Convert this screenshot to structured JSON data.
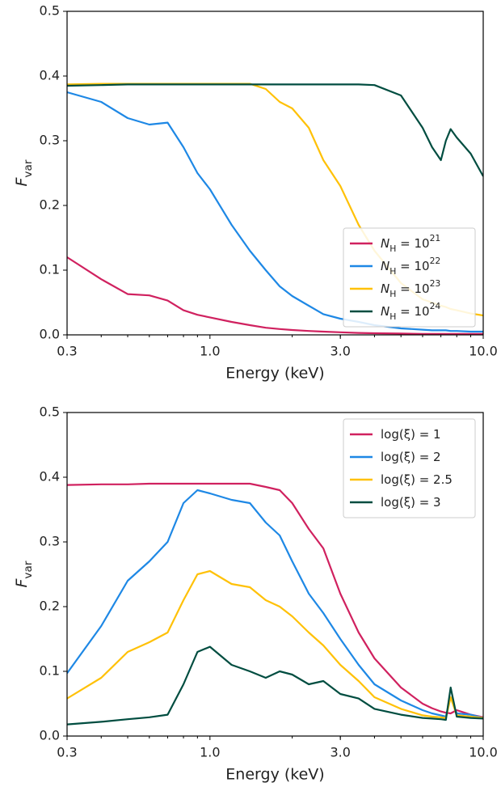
{
  "chart_data": [
    {
      "type": "line",
      "xlabel": "Energy (keV)",
      "ylabel": "F_var",
      "xscale": "log",
      "legend": "lower right",
      "xlim": [
        0.3,
        10
      ],
      "ylim": [
        0,
        0.5
      ],
      "xticks": [
        {
          "value": 0.3,
          "label": "0.3"
        },
        {
          "value": 1,
          "label": "1.0"
        },
        {
          "value": 3,
          "label": "3.0"
        },
        {
          "value": 10,
          "label": "10.0"
        }
      ],
      "yticks": [
        {
          "value": 0,
          "label": "0.0"
        },
        {
          "value": 0.1,
          "label": "0.1"
        },
        {
          "value": 0.2,
          "label": "0.2"
        },
        {
          "value": 0.3,
          "label": "0.3"
        },
        {
          "value": 0.4,
          "label": "0.4"
        },
        {
          "value": 0.5,
          "label": "0.5"
        }
      ],
      "x": [
        0.3,
        0.4,
        0.5,
        0.6,
        0.7,
        0.8,
        0.9,
        1.0,
        1.2,
        1.4,
        1.6,
        1.8,
        2.0,
        2.3,
        2.6,
        3.0,
        3.5,
        4.0,
        5.0,
        6.0,
        6.5,
        7.0,
        7.3,
        7.6,
        8.0,
        9.0,
        10
      ],
      "series": [
        {
          "name": "N_H = 10^21",
          "color": "#d0215f",
          "values": [
            0.12,
            0.086,
            0.063,
            0.061,
            0.053,
            0.038,
            0.031,
            0.027,
            0.02,
            0.015,
            0.011,
            0.009,
            0.0075,
            0.006,
            0.005,
            0.004,
            0.003,
            0.0025,
            0.002,
            0.0015,
            0.0015,
            0.0015,
            0.0015,
            0.0015,
            0.0015,
            0.0015,
            0.0015
          ]
        },
        {
          "name": "N_H = 10^22",
          "color": "#1e88e5",
          "values": [
            0.375,
            0.36,
            0.335,
            0.325,
            0.328,
            0.29,
            0.25,
            0.225,
            0.17,
            0.13,
            0.1,
            0.075,
            0.06,
            0.045,
            0.032,
            0.025,
            0.02,
            0.015,
            0.01,
            0.008,
            0.007,
            0.007,
            0.007,
            0.006,
            0.006,
            0.005,
            0.005
          ]
        },
        {
          "name": "N_H = 10^23",
          "color": "#ffc107",
          "values": [
            0.387,
            0.388,
            0.388,
            0.388,
            0.388,
            0.388,
            0.388,
            0.388,
            0.388,
            0.388,
            0.38,
            0.36,
            0.35,
            0.32,
            0.27,
            0.23,
            0.17,
            0.13,
            0.08,
            0.055,
            0.05,
            0.045,
            0.043,
            0.04,
            0.038,
            0.033,
            0.03
          ]
        },
        {
          "name": "N_H = 10^24",
          "color": "#004d40",
          "values": [
            0.385,
            0.386,
            0.387,
            0.387,
            0.387,
            0.387,
            0.387,
            0.387,
            0.387,
            0.387,
            0.387,
            0.387,
            0.387,
            0.387,
            0.387,
            0.387,
            0.387,
            0.386,
            0.37,
            0.32,
            0.29,
            0.27,
            0.3,
            0.318,
            0.305,
            0.28,
            0.245
          ]
        }
      ]
    },
    {
      "type": "line",
      "xlabel": "Energy (keV)",
      "ylabel": "F_var",
      "xscale": "log",
      "legend": "upper right",
      "xlim": [
        0.3,
        10
      ],
      "ylim": [
        0,
        0.5
      ],
      "xticks": [
        {
          "value": 0.3,
          "label": "0.3"
        },
        {
          "value": 1,
          "label": "1.0"
        },
        {
          "value": 3,
          "label": "3.0"
        },
        {
          "value": 10,
          "label": "10.0"
        }
      ],
      "yticks": [
        {
          "value": 0,
          "label": "0.0"
        },
        {
          "value": 0.1,
          "label": "0.1"
        },
        {
          "value": 0.2,
          "label": "0.2"
        },
        {
          "value": 0.3,
          "label": "0.3"
        },
        {
          "value": 0.4,
          "label": "0.4"
        },
        {
          "value": 0.5,
          "label": "0.5"
        }
      ],
      "x": [
        0.3,
        0.4,
        0.5,
        0.6,
        0.7,
        0.8,
        0.9,
        1.0,
        1.2,
        1.4,
        1.6,
        1.8,
        2.0,
        2.3,
        2.6,
        3.0,
        3.5,
        4.0,
        5.0,
        6.0,
        6.5,
        7.0,
        7.3,
        7.6,
        8.0,
        9.0,
        10
      ],
      "series": [
        {
          "name": "log(ξ) = 1",
          "color": "#d0215f",
          "values": [
            0.388,
            0.389,
            0.389,
            0.39,
            0.39,
            0.39,
            0.39,
            0.39,
            0.39,
            0.39,
            0.385,
            0.38,
            0.36,
            0.32,
            0.29,
            0.22,
            0.16,
            0.12,
            0.075,
            0.05,
            0.043,
            0.038,
            0.036,
            0.035,
            0.04,
            0.033,
            0.029
          ]
        },
        {
          "name": "log(ξ) = 2",
          "color": "#1e88e5",
          "values": [
            0.097,
            0.17,
            0.24,
            0.27,
            0.3,
            0.36,
            0.38,
            0.375,
            0.365,
            0.36,
            0.33,
            0.31,
            0.27,
            0.22,
            0.19,
            0.15,
            0.11,
            0.08,
            0.055,
            0.04,
            0.035,
            0.032,
            0.03,
            0.06,
            0.035,
            0.033,
            0.028
          ]
        },
        {
          "name": "log(ξ) = 2.5",
          "color": "#ffc107",
          "values": [
            0.058,
            0.09,
            0.13,
            0.145,
            0.16,
            0.21,
            0.25,
            0.255,
            0.235,
            0.23,
            0.21,
            0.2,
            0.185,
            0.16,
            0.14,
            0.11,
            0.085,
            0.06,
            0.042,
            0.032,
            0.03,
            0.029,
            0.028,
            0.06,
            0.032,
            0.03,
            0.028
          ]
        },
        {
          "name": "log(ξ) = 3",
          "color": "#004d40",
          "values": [
            0.018,
            0.022,
            0.026,
            0.029,
            0.033,
            0.08,
            0.13,
            0.138,
            0.11,
            0.1,
            0.09,
            0.1,
            0.095,
            0.08,
            0.085,
            0.065,
            0.058,
            0.042,
            0.033,
            0.028,
            0.027,
            0.026,
            0.025,
            0.075,
            0.03,
            0.028,
            0.027
          ]
        }
      ]
    }
  ]
}
